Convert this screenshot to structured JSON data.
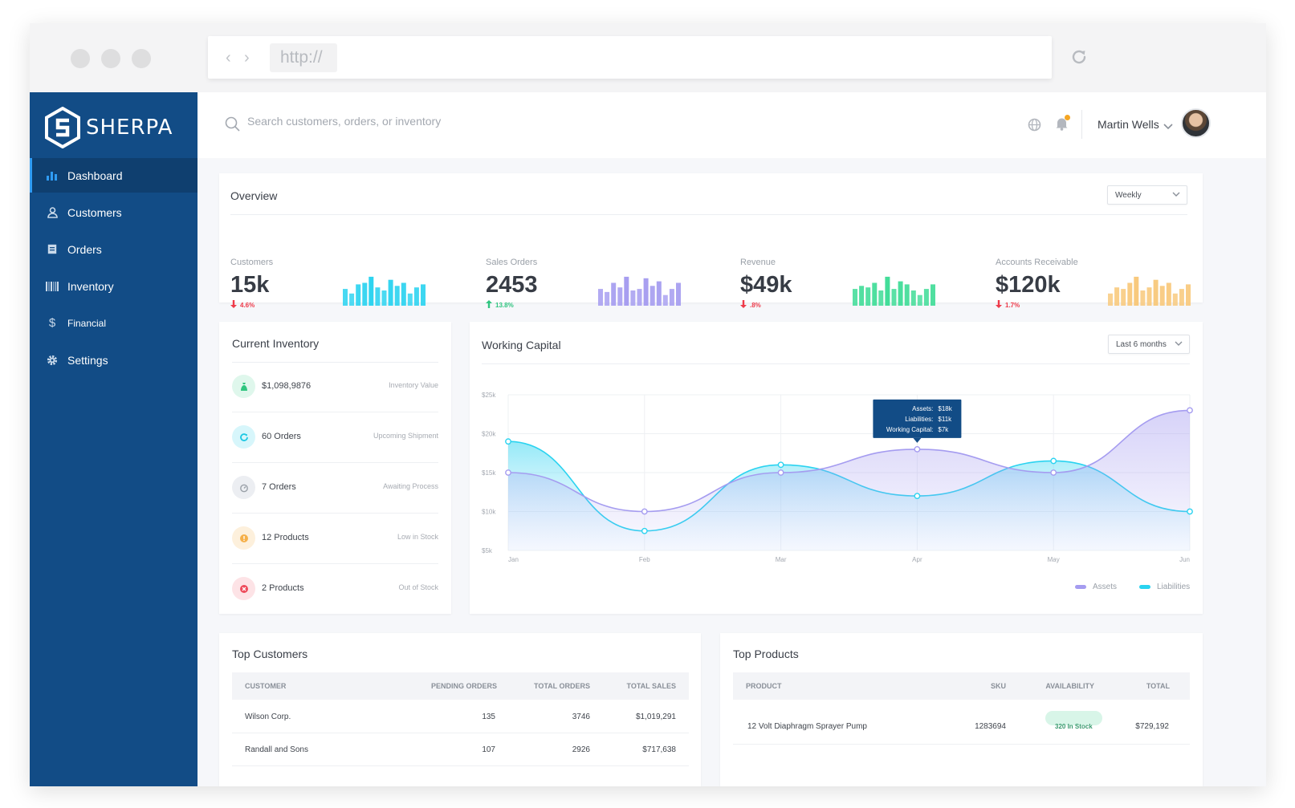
{
  "browser": {
    "url_placeholder": "http://"
  },
  "app": {
    "name": "SHERPA"
  },
  "sidebar": {
    "items": [
      {
        "label": "Dashboard",
        "icon": "bar-chart-icon",
        "active": true
      },
      {
        "label": "Customers",
        "icon": "user-icon"
      },
      {
        "label": "Orders",
        "icon": "document-icon"
      },
      {
        "label": "Inventory",
        "icon": "barcode-icon"
      },
      {
        "label": "Financial",
        "icon": "dollar-icon"
      },
      {
        "label": "Settings",
        "icon": "gear-icon"
      }
    ]
  },
  "topbar": {
    "search_placeholder": "Search customers, orders, or inventory",
    "user_name": "Martin Wells"
  },
  "overview": {
    "title": "Overview",
    "period": "Weekly",
    "kpis": [
      {
        "label": "Customers",
        "value": "15k",
        "delta": "4.6%",
        "direction": "down",
        "color": "#2ad3f0",
        "bars": [
          0.55,
          0.4,
          0.7,
          0.75,
          0.95,
          0.6,
          0.5,
          0.85,
          0.65,
          0.75,
          0.4,
          0.6,
          0.7
        ]
      },
      {
        "label": "Sales Orders",
        "value": "2453",
        "delta": "13.8%",
        "direction": "up",
        "color": "#a59cf0",
        "bars": [
          0.55,
          0.45,
          0.75,
          0.6,
          0.95,
          0.5,
          0.55,
          0.9,
          0.65,
          0.8,
          0.35,
          0.55,
          0.75
        ]
      },
      {
        "label": "Revenue",
        "value": "$49k",
        "delta": ".8%",
        "direction": "down",
        "color": "#3fdc97",
        "bars": [
          0.55,
          0.65,
          0.6,
          0.75,
          0.5,
          0.95,
          0.55,
          0.8,
          0.7,
          0.5,
          0.35,
          0.55,
          0.7
        ]
      },
      {
        "label": "Accounts Receivable",
        "value": "$120k",
        "delta": "1.7%",
        "direction": "down",
        "color": "#f8c87a",
        "bars": [
          0.4,
          0.6,
          0.55,
          0.75,
          0.95,
          0.5,
          0.6,
          0.85,
          0.65,
          0.75,
          0.4,
          0.55,
          0.7
        ]
      }
    ],
    "delta_colors": {
      "down": "#ee3b4a",
      "up": "#2fc57f"
    }
  },
  "inventory": {
    "title": "Current Inventory",
    "rows": [
      {
        "main": "$1,098,9876",
        "sub": "Inventory Value",
        "icon": "money-bag-icon",
        "bg": "#dff7ec",
        "fg": "#2fc57f"
      },
      {
        "main": "60 Orders",
        "sub": "Upcoming Shipment",
        "icon": "refresh-icon",
        "bg": "#d7f6fb",
        "fg": "#1fc8e3"
      },
      {
        "main": "7 Orders",
        "sub": "Awaiting Process",
        "icon": "timer-icon",
        "bg": "#eceef2",
        "fg": "#9aa0a8"
      },
      {
        "main": "12 Products",
        "sub": "Low in Stock",
        "icon": "warning-icon",
        "bg": "#fdf0dc",
        "fg": "#f5b04a"
      },
      {
        "main": "2 Products",
        "sub": "Out of Stock",
        "icon": "close-circle-icon",
        "bg": "#fde3e6",
        "fg": "#ee4a5a"
      }
    ]
  },
  "working_capital": {
    "title": "Working Capital",
    "period": "Last 6 months",
    "tooltip": {
      "assets_label": "Assets:",
      "assets": "$18k",
      "liabilities_label": "Liabilities:",
      "liabilities": "$11k",
      "wc_label": "Working Capital:",
      "wc": "$7k"
    },
    "legend": {
      "assets": "Assets",
      "liabilities": "Liabilities"
    },
    "colors": {
      "assets": "#a59cf0",
      "liabilities": "#2ad3f0",
      "tooltip_bg": "#124c86"
    }
  },
  "chart_data": {
    "type": "area",
    "categories": [
      "Jan",
      "Feb",
      "Mar",
      "Apr",
      "May",
      "Jun"
    ],
    "yticks": [
      "$25k",
      "$20k",
      "$15k",
      "$10k",
      "$5k"
    ],
    "ylim": [
      5,
      25
    ],
    "series": [
      {
        "name": "Assets",
        "values": [
          15,
          10,
          15,
          18,
          15,
          23
        ]
      },
      {
        "name": "Liabilities",
        "values": [
          19,
          7.5,
          16,
          12,
          16.5,
          10
        ]
      }
    ]
  },
  "top_customers": {
    "title": "Top Customers",
    "columns": [
      "CUSTOMER",
      "PENDING ORDERS",
      "TOTAL ORDERS",
      "TOTAL SALES"
    ],
    "rows": [
      [
        "Wilson Corp.",
        "135",
        "3746",
        "$1,019,291"
      ],
      [
        "Randall and Sons",
        "107",
        "2926",
        "$717,638"
      ]
    ]
  },
  "top_products": {
    "title": "Top Products",
    "columns": [
      "PRODUCT",
      "SKU",
      "AVAILABILITY",
      "TOTAL"
    ],
    "rows": [
      [
        "12 Volt Diaphragm Sprayer Pump",
        "1283694",
        "320 In Stock",
        "$729,192"
      ]
    ]
  }
}
